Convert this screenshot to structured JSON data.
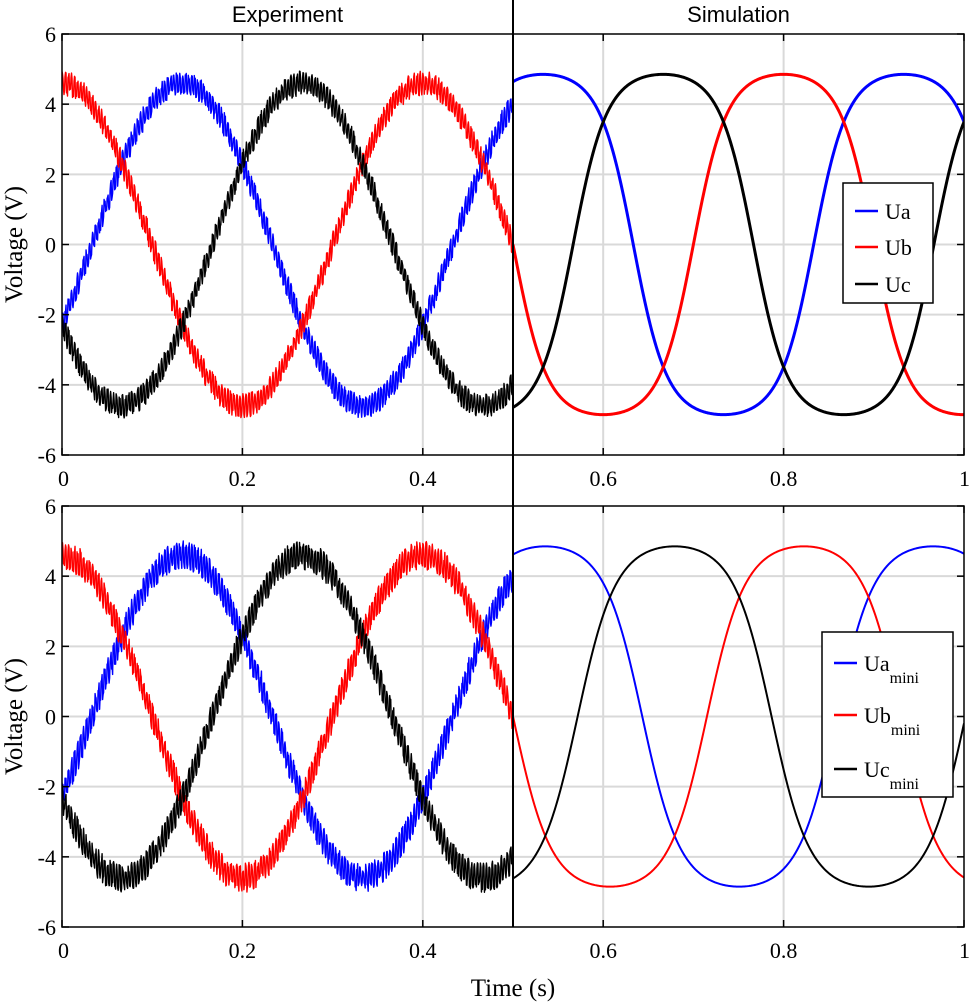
{
  "chart_data": [
    {
      "type": "line",
      "panel": "top",
      "headers": [
        "Experiment",
        "Simulation"
      ],
      "xlabel": "",
      "ylabel": "Voltage (V)",
      "xlim": [
        0,
        1
      ],
      "ylim": [
        -6,
        6
      ],
      "xticks": [
        0,
        0.2,
        0.4,
        0.6,
        0.8,
        1
      ],
      "xtick_labels": [
        "0",
        "0.2",
        "0.4",
        "0.6",
        "0.8",
        "1"
      ],
      "yticks": [
        6,
        4,
        2,
        0,
        -2,
        -4,
        -6
      ],
      "ytick_labels": [
        "6",
        "4",
        "2",
        "0",
        "-2",
        "-4",
        "-6"
      ],
      "divider_x": 0.5,
      "grid": true,
      "legend_position": "right",
      "series": [
        {
          "name": "Ua",
          "sub": "",
          "color": "#0000ff",
          "amplitude": 4.6,
          "period": 0.4,
          "phase_deg": -30,
          "noise_amp": 0.25,
          "sim_amplitude": 4.85,
          "sim_period": 0.4,
          "sim_phase_deg": -30,
          "sim_shape": 1.6
        },
        {
          "name": "Ub",
          "sub": "",
          "color": "#ff0000",
          "amplitude": 4.6,
          "period": 0.4,
          "phase_deg": 90,
          "noise_amp": 0.25,
          "sim_amplitude": 4.85,
          "sim_period": 0.4,
          "sim_phase_deg": 90,
          "sim_shape": 1.6
        },
        {
          "name": "Uc",
          "sub": "",
          "color": "#000000",
          "amplitude": 4.6,
          "period": 0.4,
          "phase_deg": 210,
          "noise_amp": 0.25,
          "sim_amplitude": 4.85,
          "sim_period": 0.4,
          "sim_phase_deg": 210,
          "sim_shape": 1.6
        }
      ]
    },
    {
      "type": "line",
      "panel": "bottom",
      "headers": [],
      "xlabel": "Time (s)",
      "ylabel": "Voltage (V)",
      "xlim": [
        0,
        1
      ],
      "ylim": [
        -6,
        6
      ],
      "xticks": [
        0,
        0.2,
        0.4,
        0.6,
        0.8,
        1
      ],
      "xtick_labels": [
        "0",
        "0.2",
        "0.4",
        "0.6",
        "0.8",
        "1"
      ],
      "yticks": [
        6,
        4,
        2,
        0,
        -2,
        -4,
        -6
      ],
      "ytick_labels": [
        "6",
        "4",
        "2",
        "0",
        "-2",
        "-4",
        "-6"
      ],
      "divider_x": 0.5,
      "grid": true,
      "legend_position": "right",
      "series": [
        {
          "name": "Ua",
          "sub": "mini",
          "color": "#0000ff",
          "amplitude": 4.6,
          "period": 0.4,
          "phase_deg": -30,
          "noise_amp": 0.3,
          "sim_amplitude": 4.85,
          "sim_period": 0.43,
          "sim_phase_deg": -30,
          "sim_shape": 1.5
        },
        {
          "name": "Ub",
          "sub": "mini",
          "color": "#ff0000",
          "amplitude": 4.6,
          "period": 0.4,
          "phase_deg": 90,
          "noise_amp": 0.3,
          "sim_amplitude": 4.85,
          "sim_period": 0.43,
          "sim_phase_deg": 90,
          "sim_shape": 1.5
        },
        {
          "name": "Uc",
          "sub": "mini",
          "color": "#000000",
          "amplitude": 4.6,
          "period": 0.4,
          "phase_deg": 210,
          "noise_amp": 0.3,
          "sim_amplitude": 4.85,
          "sim_period": 0.43,
          "sim_phase_deg": 210,
          "sim_shape": 1.5
        }
      ]
    }
  ]
}
